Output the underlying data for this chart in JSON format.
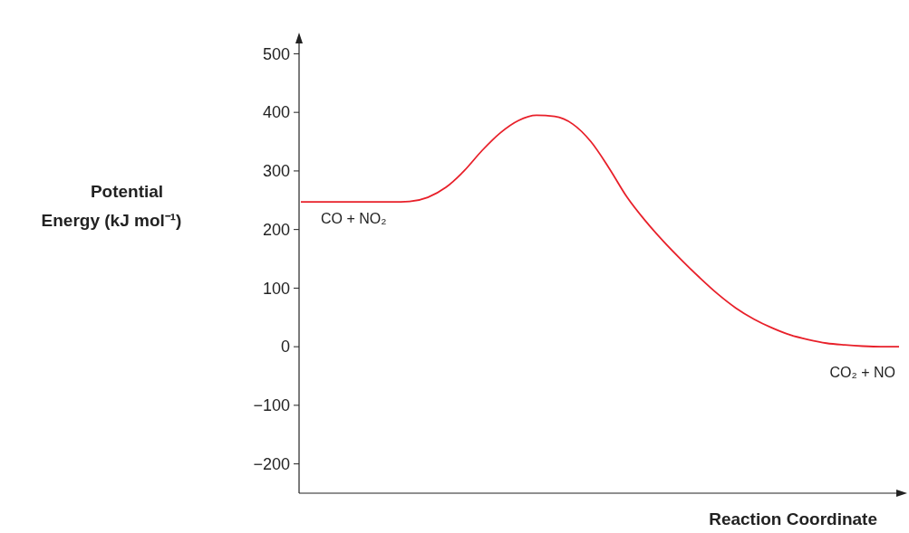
{
  "chart_data": {
    "type": "line",
    "xlabel": "Reaction Coordinate",
    "ylabel": "Potential Energy (kJ mol⁻¹)",
    "categories": [
      null,
      null,
      null,
      null,
      null,
      null,
      null,
      null,
      null,
      null,
      null,
      null,
      null,
      null,
      null,
      null,
      null,
      null,
      null,
      null,
      null,
      null,
      null,
      null,
      null,
      null,
      null,
      null,
      null,
      null,
      null,
      null,
      null,
      null
    ],
    "series": [
      {
        "color": "#e8202a",
        "values": [
          247,
          247,
          247,
          247,
          247,
          247,
          248,
          255,
          272,
          300,
          335,
          365,
          386,
          395,
          393,
          380,
          350,
          305,
          255,
          215,
          180,
          148,
          118,
          90,
          66,
          47,
          32,
          20,
          12,
          6,
          3,
          1,
          0,
          0
        ]
      }
    ],
    "ylim": [
      -250,
      530
    ],
    "yticks": [
      {
        "value": -200,
        "label": "−200"
      },
      {
        "value": -100,
        "label": "−100"
      },
      0,
      100,
      200,
      300,
      400,
      500
    ],
    "annotations": [
      "CO + NO₂",
      "CO₂ + NO"
    ],
    "grid": false,
    "marker": "none",
    "line_style": "solid"
  }
}
